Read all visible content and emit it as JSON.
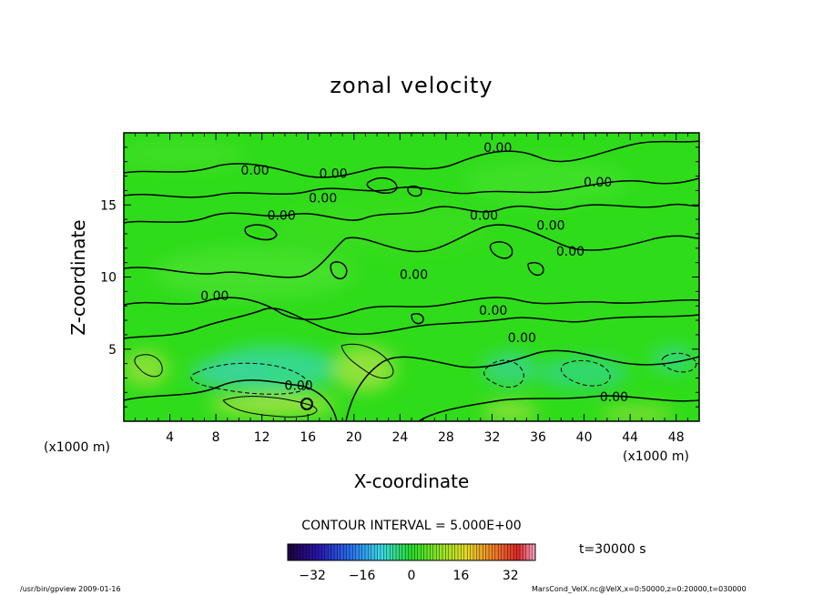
{
  "chart_data": {
    "type": "heatmap",
    "title": "zonal velocity",
    "xlabel": "X-coordinate",
    "ylabel": "Z-coordinate",
    "x_unit_left": "(x1000 m)",
    "x_unit_right": "(x1000 m)",
    "xlim": [
      0,
      50
    ],
    "ylim": [
      0,
      20
    ],
    "xticks": [
      4,
      8,
      12,
      16,
      20,
      24,
      28,
      32,
      36,
      40,
      44,
      48
    ],
    "yticks": [
      5,
      10,
      15
    ],
    "contour_interval_text": "CONTOUR INTERVAL = 5.000E+00",
    "time_text": "t=30000 s",
    "colorbar": {
      "min": -40,
      "max": 40,
      "ticks": [
        -32,
        -16,
        0,
        16,
        32
      ]
    },
    "contour_labels": [
      {
        "x": 11.4,
        "z": 17.4,
        "text": "0.00"
      },
      {
        "x": 18.2,
        "z": 17.2,
        "text": "0.00"
      },
      {
        "x": 17.3,
        "z": 15.5,
        "text": "0.00"
      },
      {
        "x": 13.7,
        "z": 14.3,
        "text": "0.00"
      },
      {
        "x": 32.5,
        "z": 19.0,
        "text": "0.00"
      },
      {
        "x": 41.2,
        "z": 16.6,
        "text": "0.00"
      },
      {
        "x": 31.3,
        "z": 14.3,
        "text": "0.00"
      },
      {
        "x": 37.1,
        "z": 13.6,
        "text": "0.00"
      },
      {
        "x": 38.8,
        "z": 11.8,
        "text": "0.00"
      },
      {
        "x": 25.2,
        "z": 10.2,
        "text": "0.00"
      },
      {
        "x": 7.9,
        "z": 8.7,
        "text": "0.00"
      },
      {
        "x": 32.1,
        "z": 7.7,
        "text": "0.00"
      },
      {
        "x": 34.6,
        "z": 5.8,
        "text": "0.00"
      },
      {
        "x": 15.2,
        "z": 2.5,
        "text": "0.00"
      },
      {
        "x": 42.6,
        "z": 1.7,
        "text": "0.00"
      }
    ]
  },
  "footer": {
    "left": "/usr/bin/gpview  2009-01-16",
    "right": "MarsCond_VelX.nc@VelX,x=0:50000,z=0:20000,t=030000"
  },
  "colors": {
    "field_base": "#2fdc1a",
    "positive": "#8ee23a",
    "negative": "#3ad87a"
  }
}
